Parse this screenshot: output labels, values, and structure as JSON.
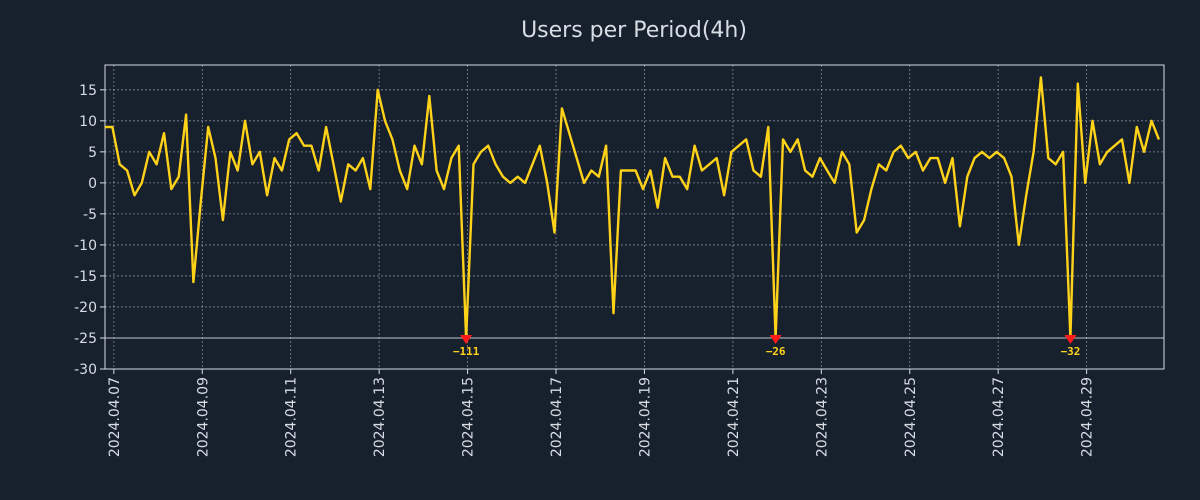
{
  "colors": {
    "background": "#17202d",
    "line": "#ffd21a",
    "marker": "#ff1a1a",
    "grid": "#d8dde4",
    "text": "#d8dde4"
  },
  "chart_data": {
    "type": "line",
    "title": "Users per Period(4h)",
    "xlabel": "",
    "ylabel": "",
    "ylim": [
      -30,
      19
    ],
    "yticks": [
      15,
      10,
      5,
      0,
      -5,
      -10,
      -15,
      -20,
      -25,
      -30
    ],
    "xlim_days": [
      6.8,
      30.75
    ],
    "xticks": [
      {
        "label": "2024.04.07",
        "day": 7
      },
      {
        "label": "2024.04.09",
        "day": 9
      },
      {
        "label": "2024.04.11",
        "day": 11
      },
      {
        "label": "2024.04.13",
        "day": 13
      },
      {
        "label": "2024.04.15",
        "day": 15
      },
      {
        "label": "2024.04.17",
        "day": 17
      },
      {
        "label": "2024.04.19",
        "day": 19
      },
      {
        "label": "2024.04.21",
        "day": 21
      },
      {
        "label": "2024.04.23",
        "day": 23
      },
      {
        "label": "2024.04.25",
        "day": 25
      },
      {
        "label": "2024.04.27",
        "day": 27
      },
      {
        "label": "2024.04.29",
        "day": 29
      }
    ],
    "clip_line": -25,
    "grid": true,
    "series": [
      {
        "name": "users",
        "x_start_day": 6.8,
        "step_days": 0.16667,
        "values": [
          9,
          9,
          3,
          2,
          -2,
          0,
          5,
          3,
          8,
          -1,
          1,
          11,
          -16,
          -3,
          9,
          4,
          -6,
          5,
          2,
          10,
          3,
          5,
          -2,
          4,
          2,
          7,
          8,
          6,
          6,
          2,
          9,
          3,
          -3,
          3,
          2,
          4,
          -1,
          15,
          10,
          7,
          2,
          -1,
          6,
          3,
          14,
          2,
          -1,
          4,
          6,
          -25,
          3,
          5,
          6,
          3,
          1,
          0,
          1,
          0,
          3,
          6,
          0,
          -8,
          12,
          8,
          4,
          0,
          2,
          1,
          6,
          -21,
          2,
          2,
          2,
          -1,
          2,
          -4,
          4,
          1,
          1,
          -1,
          6,
          2,
          3,
          4,
          -2,
          5,
          6,
          7,
          2,
          1,
          9,
          -25,
          7,
          5,
          7,
          2,
          1,
          4,
          2,
          0,
          5,
          3,
          -8,
          -6,
          -1,
          3,
          2,
          5,
          6,
          4,
          5,
          2,
          4,
          4,
          0,
          4,
          -7,
          1,
          4,
          5,
          4,
          5,
          4,
          1,
          -10,
          -2,
          5,
          17,
          4,
          3,
          5,
          -25,
          16,
          0,
          10,
          3,
          5,
          6,
          7,
          0,
          9,
          5,
          10,
          7
        ]
      }
    ],
    "clipped_points": [
      {
        "index": 49,
        "actual": "−111"
      },
      {
        "index": 91,
        "actual": "−26"
      },
      {
        "index": 131,
        "actual": "−32"
      }
    ]
  }
}
